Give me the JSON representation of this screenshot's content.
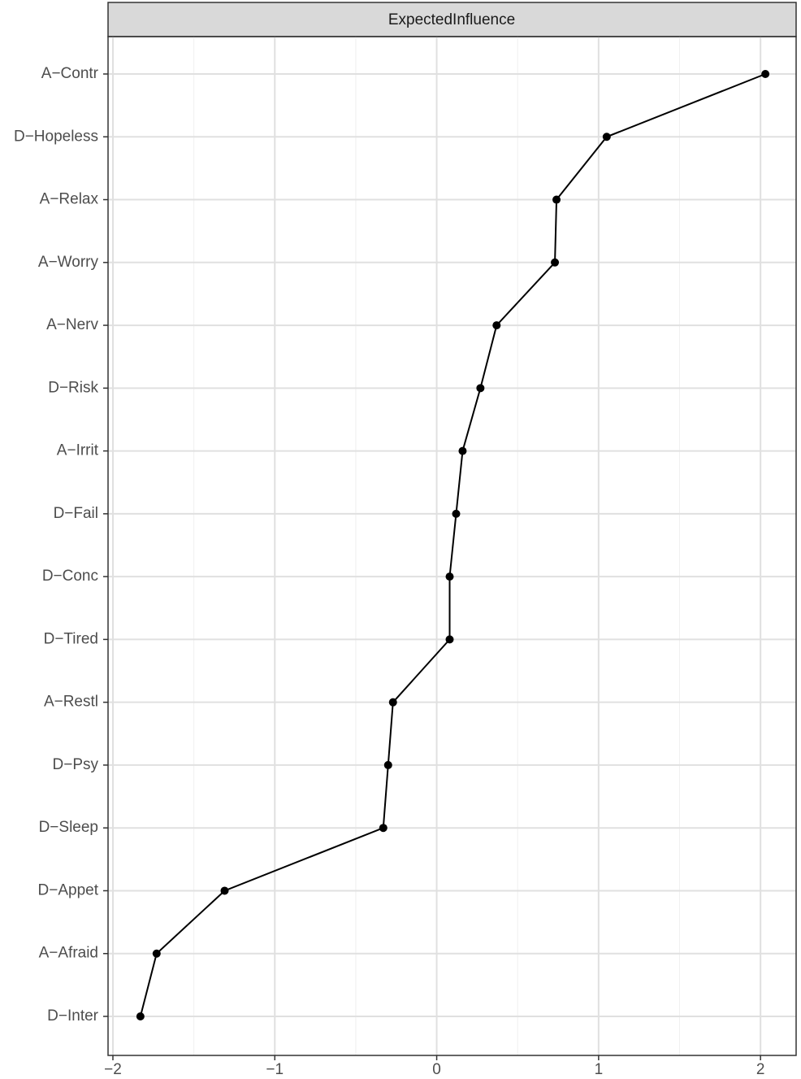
{
  "chart_data": {
    "type": "line",
    "title": "ExpectedInfluence",
    "categories": [
      "A−Contr",
      "D−Hopeless",
      "A−Relax",
      "A−Worry",
      "A−Nerv",
      "D−Risk",
      "A−Irrit",
      "D−Fail",
      "D−Conc",
      "D−Tired",
      "A−Restl",
      "D−Psy",
      "D−Sleep",
      "D−Appet",
      "A−Afraid",
      "D−Inter"
    ],
    "values": [
      2.03,
      1.05,
      0.74,
      0.73,
      0.37,
      0.27,
      0.16,
      0.12,
      0.08,
      0.08,
      -0.27,
      -0.3,
      -0.33,
      -1.31,
      -1.73,
      -1.83
    ],
    "color": "#000000",
    "xlim": [
      -2.03,
      2.22
    ],
    "xticks": [
      {
        "value": -2,
        "label": "−2"
      },
      {
        "value": -1,
        "label": "−1"
      },
      0,
      1,
      2
    ],
    "minor_xticks": [
      -1.5,
      -0.5,
      0.5,
      1.5
    ],
    "grid": true
  }
}
